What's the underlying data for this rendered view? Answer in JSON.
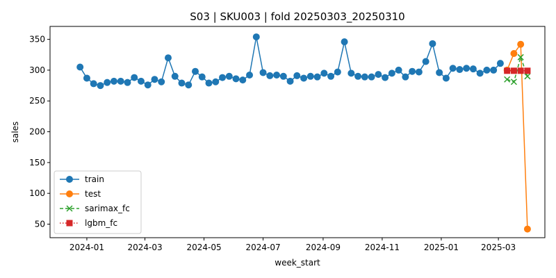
{
  "chart_data": {
    "type": "line",
    "title": "S03 | SKU003 | fold 20250303_20250310",
    "xlabel": "week_start",
    "ylabel": "sales",
    "xlim": [
      "2023-11-24",
      "2025-04-18"
    ],
    "ylim": [
      28,
      371
    ],
    "x_ticks": [
      {
        "date": "2024-01-01",
        "label": "2024-01"
      },
      {
        "date": "2024-03-01",
        "label": "2024-03"
      },
      {
        "date": "2024-05-01",
        "label": "2024-05"
      },
      {
        "date": "2024-07-01",
        "label": "2024-07"
      },
      {
        "date": "2024-09-01",
        "label": "2024-09"
      },
      {
        "date": "2024-11-01",
        "label": "2024-11"
      },
      {
        "date": "2025-01-01",
        "label": "2025-01"
      },
      {
        "date": "2025-03-01",
        "label": "2025-03"
      }
    ],
    "y_ticks": [
      50,
      100,
      150,
      200,
      250,
      300,
      350
    ],
    "grid": false,
    "legend_position": "lower-left",
    "series": [
      {
        "name": "train",
        "color": "#1f77b4",
        "marker": "circle",
        "line": "solid",
        "x": [
          "2023-12-25",
          "2024-01-01",
          "2024-01-08",
          "2024-01-15",
          "2024-01-22",
          "2024-01-29",
          "2024-02-05",
          "2024-02-12",
          "2024-02-19",
          "2024-02-26",
          "2024-03-04",
          "2024-03-11",
          "2024-03-18",
          "2024-03-25",
          "2024-04-01",
          "2024-04-08",
          "2024-04-15",
          "2024-04-22",
          "2024-04-29",
          "2024-05-06",
          "2024-05-13",
          "2024-05-20",
          "2024-05-27",
          "2024-06-03",
          "2024-06-10",
          "2024-06-17",
          "2024-06-24",
          "2024-07-01",
          "2024-07-08",
          "2024-07-15",
          "2024-07-22",
          "2024-07-29",
          "2024-08-05",
          "2024-08-12",
          "2024-08-19",
          "2024-08-26",
          "2024-09-02",
          "2024-09-09",
          "2024-09-16",
          "2024-09-23",
          "2024-09-30",
          "2024-10-07",
          "2024-10-14",
          "2024-10-21",
          "2024-10-28",
          "2024-11-04",
          "2024-11-11",
          "2024-11-18",
          "2024-11-25",
          "2024-12-02",
          "2024-12-09",
          "2024-12-16",
          "2024-12-23",
          "2024-12-30",
          "2025-01-06",
          "2025-01-13",
          "2025-01-20",
          "2025-01-27",
          "2025-02-03",
          "2025-02-10",
          "2025-02-17",
          "2025-02-24",
          "2025-03-03"
        ],
        "y": [
          305,
          287,
          278,
          275,
          280,
          282,
          282,
          280,
          288,
          282,
          276,
          285,
          281,
          320,
          290,
          279,
          276,
          298,
          289,
          279,
          281,
          288,
          290,
          286,
          284,
          292,
          354,
          296,
          291,
          292,
          290,
          282,
          291,
          287,
          290,
          289,
          295,
          290,
          297,
          346,
          295,
          290,
          289,
          289,
          293,
          288,
          295,
          300,
          289,
          298,
          297,
          314,
          343,
          296,
          287,
          303,
          301,
          303,
          302,
          295,
          300,
          300,
          311
        ]
      },
      {
        "name": "test",
        "color": "#ff7f0e",
        "marker": "circle",
        "line": "solid",
        "x": [
          "2025-03-10",
          "2025-03-17",
          "2025-03-24",
          "2025-03-31"
        ],
        "y": [
          300,
          327,
          342,
          42
        ]
      },
      {
        "name": "sarimax_fc",
        "color": "#2ca02c",
        "marker": "x",
        "line": "dashed",
        "x": [
          "2025-03-10",
          "2025-03-17",
          "2025-03-24",
          "2025-03-31"
        ],
        "y": [
          285,
          281,
          321,
          290
        ]
      },
      {
        "name": "lgbm_fc",
        "color": "#d62728",
        "marker": "square",
        "line": "dotted",
        "x": [
          "2025-03-10",
          "2025-03-17",
          "2025-03-24",
          "2025-03-31"
        ],
        "y": [
          299,
          299,
          299,
          299
        ]
      }
    ]
  }
}
